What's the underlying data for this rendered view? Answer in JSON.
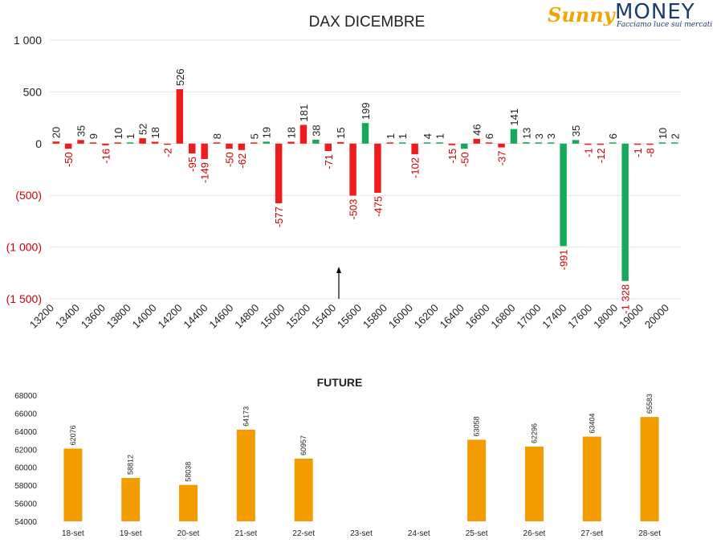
{
  "logo": {
    "brand_part1": "Sunny",
    "brand_part2": "MONEY",
    "tagline": "Facciamo luce sui mercati",
    "colors": {
      "gold": "#f0a500",
      "navy": "#1a3c6e"
    }
  },
  "chart_data": [
    {
      "type": "bar",
      "title": "DAX DICEMBRE",
      "ylim": [
        -1500,
        1000
      ],
      "yticks": [
        1000,
        500,
        0,
        -500,
        -1000,
        -1500
      ],
      "ytick_labels": [
        "1 000",
        "500",
        "0",
        "(500)",
        "(1 000)",
        "(1 500)"
      ],
      "xtick_labels": [
        "13200",
        "13400",
        "13600",
        "13800",
        "14000",
        "14200",
        "14400",
        "14600",
        "14800",
        "15000",
        "15200",
        "15400",
        "15600",
        "15800",
        "16000",
        "16200",
        "16400",
        "16600",
        "16800",
        "17000",
        "17400",
        "17600",
        "18000",
        "19000",
        "20000"
      ],
      "grid": true,
      "colors": {
        "red": "#ee1c1c",
        "green": "#16a95a",
        "negative_tick": "#cc0000",
        "arrow": "#000000"
      },
      "arrow_annotation_at": 15500,
      "bars": [
        {
          "value": 20,
          "label": "20",
          "color": "red"
        },
        {
          "value": -50,
          "label": "-50",
          "color": "red"
        },
        {
          "value": 35,
          "label": "35",
          "color": "red"
        },
        {
          "value": 9,
          "label": "9",
          "color": "red"
        },
        {
          "value": -16,
          "label": "-16",
          "color": "red"
        },
        {
          "value": 10,
          "label": "10",
          "color": "red"
        },
        {
          "value": 1,
          "label": "1",
          "color": "green"
        },
        {
          "value": 52,
          "label": "52",
          "color": "red"
        },
        {
          "value": 18,
          "label": "18",
          "color": "red"
        },
        {
          "value": -2,
          "label": "-2",
          "color": "red"
        },
        {
          "value": 526,
          "label": "526",
          "color": "red"
        },
        {
          "value": -95,
          "label": "-95",
          "color": "red"
        },
        {
          "value": -149,
          "label": "-149",
          "color": "red"
        },
        {
          "value": 8,
          "label": "8",
          "color": "red"
        },
        {
          "value": -50,
          "label": "-50",
          "color": "red"
        },
        {
          "value": -62,
          "label": "-62",
          "color": "red"
        },
        {
          "value": 5,
          "label": "5",
          "color": "red"
        },
        {
          "value": 19,
          "label": "19",
          "color": "green"
        },
        {
          "value": -577,
          "label": "-577",
          "color": "red"
        },
        {
          "value": 18,
          "label": "18",
          "color": "red"
        },
        {
          "value": 181,
          "label": "181",
          "color": "red"
        },
        {
          "value": 38,
          "label": "38",
          "color": "green"
        },
        {
          "value": -71,
          "label": "-71",
          "color": "red"
        },
        {
          "value": 15,
          "label": "15",
          "color": "red"
        },
        {
          "value": -503,
          "label": "-503",
          "color": "red"
        },
        {
          "value": 199,
          "label": "199",
          "color": "green"
        },
        {
          "value": -475,
          "label": "-475",
          "color": "red"
        },
        {
          "value": 1,
          "label": "1",
          "color": "red"
        },
        {
          "value": 1,
          "label": "1",
          "color": "green"
        },
        {
          "value": -102,
          "label": "-102",
          "color": "red"
        },
        {
          "value": 4,
          "label": "4",
          "color": "green"
        },
        {
          "value": 1,
          "label": "1",
          "color": "green"
        },
        {
          "value": -15,
          "label": "-15",
          "color": "red"
        },
        {
          "value": -50,
          "label": "-50",
          "color": "green"
        },
        {
          "value": 46,
          "label": "46",
          "color": "red"
        },
        {
          "value": 6,
          "label": "6",
          "color": "red"
        },
        {
          "value": -37,
          "label": "-37",
          "color": "red"
        },
        {
          "value": 141,
          "label": "141",
          "color": "green"
        },
        {
          "value": 13,
          "label": "13",
          "color": "green"
        },
        {
          "value": 3,
          "label": "3",
          "color": "green"
        },
        {
          "value": 3,
          "label": "3",
          "color": "green"
        },
        {
          "value": -991,
          "label": "-991",
          "color": "green"
        },
        {
          "value": 35,
          "label": "35",
          "color": "green"
        },
        {
          "value": -1,
          "label": "-1",
          "color": "red"
        },
        {
          "value": -12,
          "label": "-12",
          "color": "red"
        },
        {
          "value": 6,
          "label": "6",
          "color": "green"
        },
        {
          "value": -1328,
          "label": "-1 328",
          "color": "green"
        },
        {
          "value": -1,
          "label": "-1",
          "color": "red"
        },
        {
          "value": -8,
          "label": "-8",
          "color": "red"
        },
        {
          "value": 10,
          "label": "10",
          "color": "green"
        },
        {
          "value": 2,
          "label": "2",
          "color": "green"
        }
      ]
    },
    {
      "type": "bar",
      "title": "FUTURE",
      "ylim": [
        54000,
        68000
      ],
      "yticks": [
        54000,
        56000,
        58000,
        60000,
        62000,
        64000,
        66000,
        68000
      ],
      "categories": [
        "18-set",
        "19-set",
        "20-set",
        "21-set",
        "22-set",
        "23-set",
        "24-set",
        "25-set",
        "26-set",
        "27-set",
        "28-set"
      ],
      "values": [
        62076,
        58812,
        58038,
        64173,
        60957,
        null,
        null,
        63058,
        62296,
        63404,
        65583
      ],
      "value_labels": [
        "62076",
        "58812",
        "58038",
        "64173",
        "60957",
        "",
        "",
        "63058",
        "62296",
        "63404",
        "65583"
      ],
      "color": "#f39c00",
      "grid": false
    }
  ]
}
